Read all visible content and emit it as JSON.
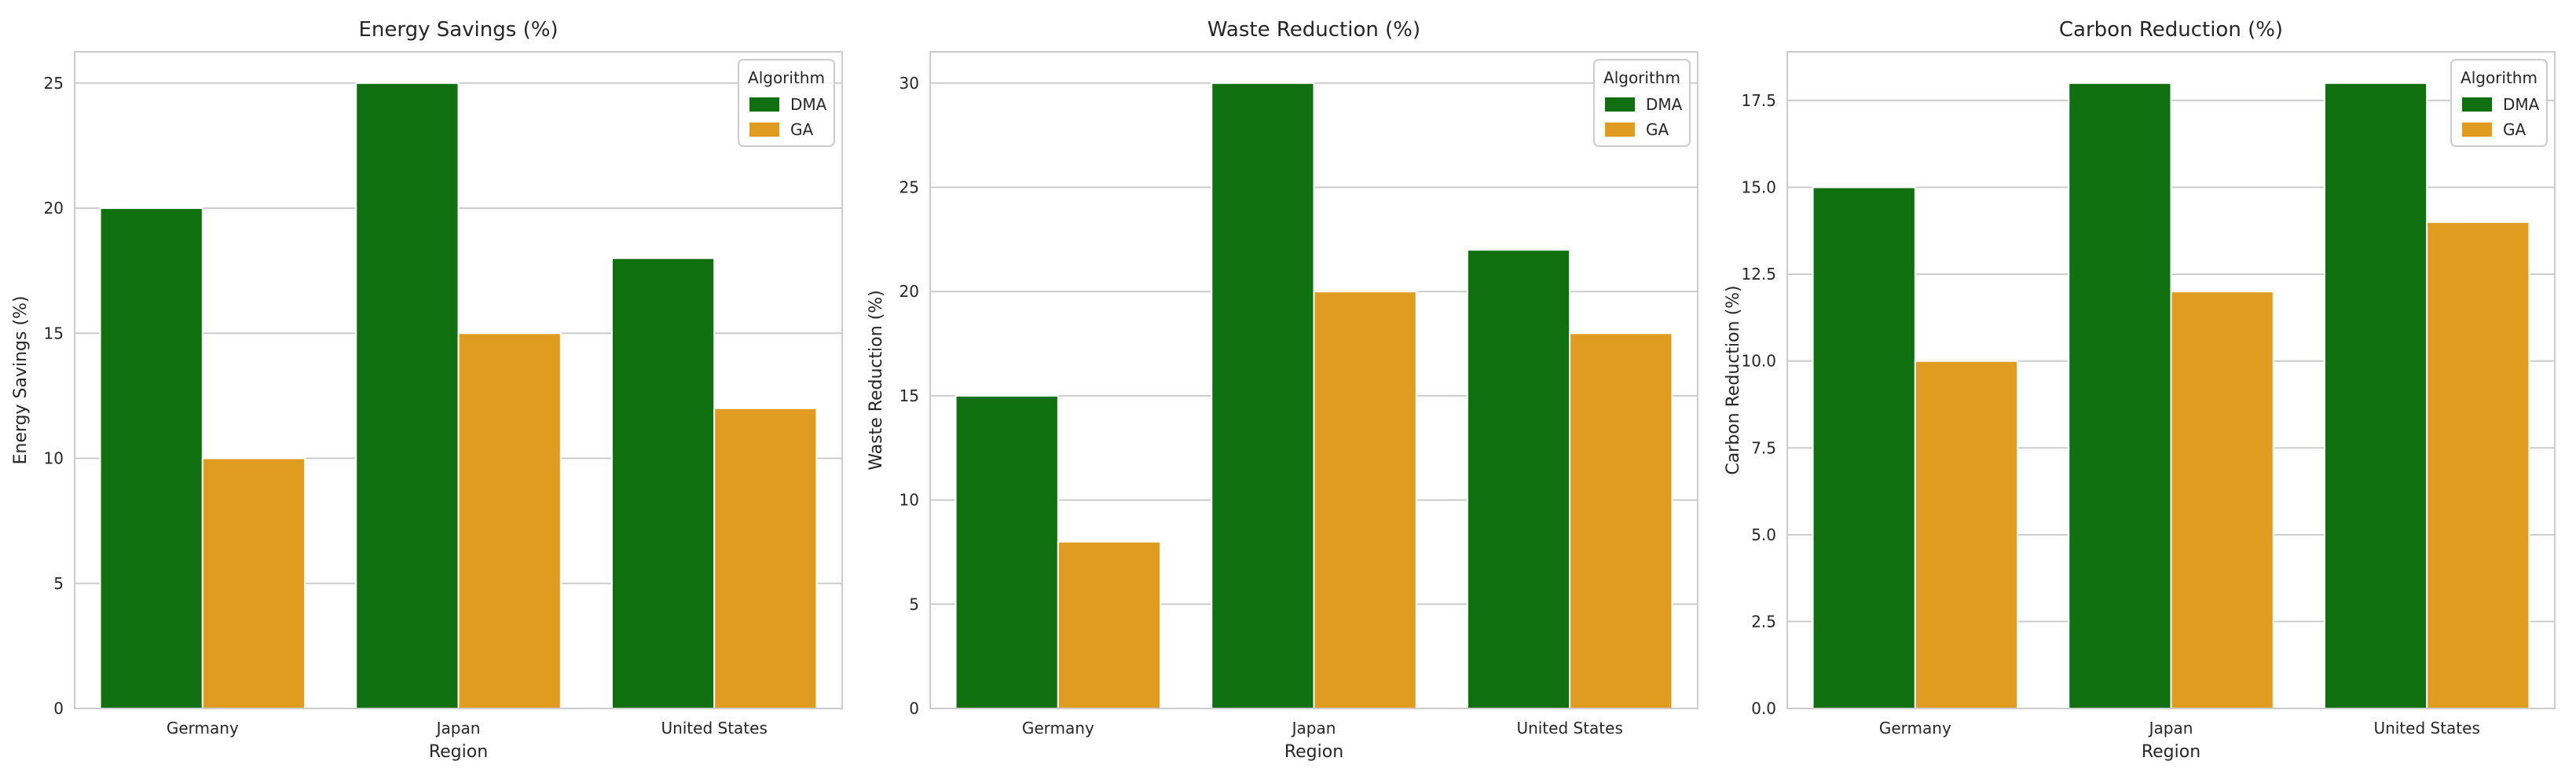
{
  "chart_data": [
    {
      "type": "bar",
      "title": "Energy Savings (%)",
      "xlabel": "Region",
      "ylabel": "Energy Savings (%)",
      "categories": [
        "Germany",
        "Japan",
        "United States"
      ],
      "series": [
        {
          "name": "DMA",
          "color": "#107010",
          "values": [
            20,
            25,
            18
          ]
        },
        {
          "name": "GA",
          "color": "#e09c20",
          "values": [
            10,
            15,
            12
          ]
        }
      ],
      "ylim": [
        0,
        26.25
      ],
      "yticks": [
        0,
        5,
        10,
        15,
        20,
        25
      ],
      "ytick_labels": [
        "0",
        "5",
        "10",
        "15",
        "20",
        "25"
      ],
      "legend": {
        "title": "Algorithm",
        "location": "top-right"
      },
      "grid": true
    },
    {
      "type": "bar",
      "title": "Waste Reduction (%)",
      "xlabel": "Region",
      "ylabel": "Waste Reduction (%)",
      "categories": [
        "Germany",
        "Japan",
        "United States"
      ],
      "series": [
        {
          "name": "DMA",
          "color": "#107010",
          "values": [
            15,
            30,
            22
          ]
        },
        {
          "name": "GA",
          "color": "#e09c20",
          "values": [
            8,
            20,
            18
          ]
        }
      ],
      "ylim": [
        0,
        31.5
      ],
      "yticks": [
        0,
        5,
        10,
        15,
        20,
        25,
        30
      ],
      "ytick_labels": [
        "0",
        "5",
        "10",
        "15",
        "20",
        "25",
        "30"
      ],
      "legend": {
        "title": "Algorithm",
        "location": "top-right"
      },
      "grid": true
    },
    {
      "type": "bar",
      "title": "Carbon Reduction (%)",
      "xlabel": "Region",
      "ylabel": "Carbon Reduction (%)",
      "categories": [
        "Germany",
        "Japan",
        "United States"
      ],
      "series": [
        {
          "name": "DMA",
          "color": "#107010",
          "values": [
            15,
            18,
            18
          ]
        },
        {
          "name": "GA",
          "color": "#e09c20",
          "values": [
            10,
            12,
            14
          ]
        }
      ],
      "ylim": [
        0,
        18.9
      ],
      "yticks": [
        0,
        2.5,
        5,
        7.5,
        10,
        12.5,
        15,
        17.5
      ],
      "ytick_labels": [
        "0.0",
        "2.5",
        "5.0",
        "7.5",
        "10.0",
        "12.5",
        "15.0",
        "17.5"
      ],
      "legend": {
        "title": "Algorithm",
        "location": "top-right"
      },
      "grid": true
    }
  ]
}
